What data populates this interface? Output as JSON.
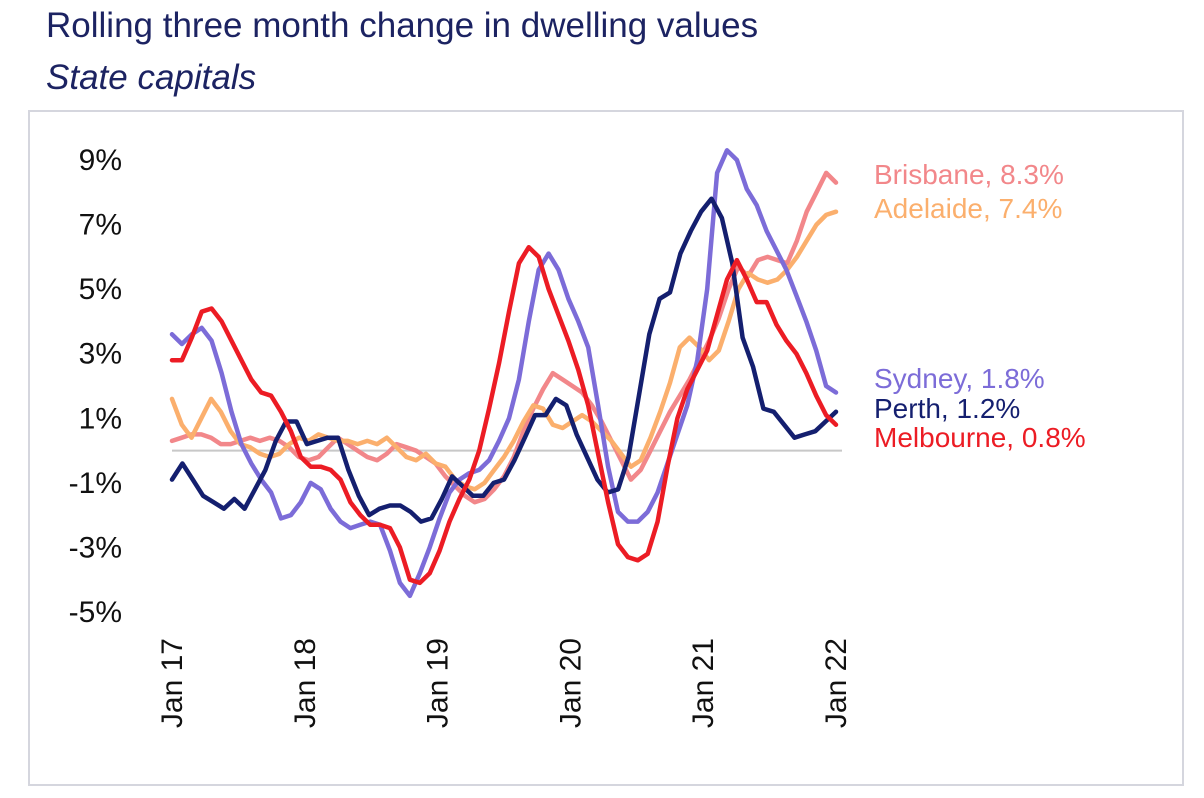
{
  "chart_data": {
    "type": "line",
    "title": "Rolling three month change in dwelling values",
    "subtitle": "State capitals",
    "x_tick_labels": [
      "Jan 17",
      "Jan 18",
      "Jan 19",
      "Jan 20",
      "Jan 21",
      "Jan 22"
    ],
    "y_tick_labels": [
      "9%",
      "7%",
      "5%",
      "3%",
      "1%",
      "-1%",
      "-3%",
      "-5%"
    ],
    "y_ticks": [
      9,
      7,
      5,
      3,
      1,
      -1,
      -3,
      -5
    ],
    "ylim": [
      -5.5,
      10.2
    ],
    "x_start": "2017-01",
    "x_end": "2022-01",
    "zero_line": true,
    "grid": false,
    "legend": "end-of-line labels",
    "series": [
      {
        "name": "Brisbane",
        "end_label": "Brisbane, 8.3%",
        "color": "#f2878a",
        "values": [
          0.3,
          0.4,
          0.5,
          0.5,
          0.4,
          0.2,
          0.2,
          0.3,
          0.4,
          0.3,
          0.4,
          0.3,
          0.1,
          -0.2,
          -0.3,
          -0.2,
          0.1,
          0.4,
          0.2,
          0.0,
          -0.2,
          -0.3,
          -0.1,
          0.2,
          0.1,
          0.0,
          -0.2,
          -0.4,
          -0.8,
          -1.1,
          -1.4,
          -1.6,
          -1.5,
          -1.2,
          -0.8,
          -0.2,
          0.6,
          1.3,
          1.9,
          2.4,
          2.2,
          2.0,
          1.8,
          1.4,
          0.9,
          0.3,
          -0.3,
          -0.9,
          -0.6,
          0.0,
          0.6,
          1.2,
          1.7,
          2.2,
          2.8,
          3.4,
          4.1,
          5.0,
          5.7,
          5.4,
          5.9,
          6.0,
          5.9,
          5.8,
          6.5,
          7.4,
          8.0,
          8.6,
          8.3
        ]
      },
      {
        "name": "Adelaide",
        "end_label": "Adelaide, 7.4%",
        "color": "#fbaf6d",
        "values": [
          1.6,
          0.8,
          0.4,
          1.0,
          1.6,
          1.2,
          0.6,
          0.2,
          0.1,
          -0.1,
          -0.2,
          -0.1,
          0.2,
          0.4,
          0.3,
          0.5,
          0.4,
          0.3,
          0.3,
          0.2,
          0.3,
          0.2,
          0.4,
          0.1,
          -0.2,
          -0.3,
          -0.1,
          -0.4,
          -0.5,
          -0.9,
          -1.1,
          -1.2,
          -1.0,
          -0.6,
          -0.2,
          0.3,
          0.9,
          1.4,
          1.3,
          0.8,
          0.7,
          0.9,
          1.1,
          0.9,
          0.6,
          0.3,
          -0.1,
          -0.5,
          -0.3,
          0.4,
          1.2,
          2.1,
          3.2,
          3.5,
          3.2,
          2.8,
          3.1,
          4.0,
          5.0,
          5.5,
          5.3,
          5.2,
          5.3,
          5.6,
          6.0,
          6.5,
          7.0,
          7.3,
          7.4
        ]
      },
      {
        "name": "Sydney",
        "end_label": "Sydney, 1.8%",
        "color": "#7c6cd8",
        "values": [
          3.6,
          3.3,
          3.6,
          3.8,
          3.4,
          2.4,
          1.2,
          0.2,
          -0.4,
          -0.9,
          -1.3,
          -2.1,
          -2.0,
          -1.6,
          -1.0,
          -1.2,
          -1.8,
          -2.2,
          -2.4,
          -2.3,
          -2.2,
          -2.3,
          -3.1,
          -4.1,
          -4.5,
          -3.8,
          -3.0,
          -2.1,
          -1.3,
          -0.9,
          -0.7,
          -0.6,
          -0.3,
          0.3,
          1.0,
          2.2,
          4.0,
          5.6,
          6.1,
          5.6,
          4.7,
          4.0,
          3.2,
          1.4,
          -0.5,
          -1.9,
          -2.2,
          -2.2,
          -1.9,
          -1.3,
          -0.4,
          0.5,
          1.4,
          2.8,
          5.0,
          8.6,
          9.3,
          9.0,
          8.1,
          7.6,
          6.8,
          6.2,
          5.6,
          4.8,
          4.0,
          3.1,
          2.0,
          1.8
        ]
      },
      {
        "name": "Perth",
        "end_label": "Perth, 1.2%",
        "color": "#141f6f",
        "values": [
          -0.9,
          -0.4,
          -0.9,
          -1.4,
          -1.6,
          -1.8,
          -1.5,
          -1.8,
          -1.2,
          -0.6,
          0.3,
          0.9,
          0.9,
          0.2,
          0.3,
          0.4,
          0.4,
          -0.6,
          -1.4,
          -2.0,
          -1.8,
          -1.7,
          -1.7,
          -1.9,
          -2.2,
          -2.1,
          -1.5,
          -0.8,
          -1.1,
          -1.4,
          -1.4,
          -1.0,
          -0.9,
          -0.3,
          0.4,
          1.1,
          1.1,
          1.6,
          1.4,
          0.5,
          -0.2,
          -0.9,
          -1.3,
          -1.2,
          -0.2,
          1.7,
          3.6,
          4.7,
          4.9,
          6.1,
          6.8,
          7.4,
          7.8,
          7.2,
          5.8,
          3.5,
          2.6,
          1.3,
          1.2,
          0.8,
          0.4,
          0.5,
          0.6,
          0.9,
          1.2
        ]
      },
      {
        "name": "Melbourne",
        "end_label": "Melbourne, 0.8%",
        "color": "#ec1c24",
        "values": [
          2.8,
          2.8,
          3.5,
          4.3,
          4.4,
          4.0,
          3.4,
          2.8,
          2.2,
          1.8,
          1.7,
          1.2,
          0.6,
          -0.2,
          -0.5,
          -0.5,
          -0.6,
          -0.9,
          -1.6,
          -2.0,
          -2.3,
          -2.3,
          -2.4,
          -3.0,
          -4.0,
          -4.1,
          -3.8,
          -3.1,
          -2.2,
          -1.5,
          -0.9,
          0.0,
          1.3,
          2.7,
          4.3,
          5.8,
          6.3,
          6.0,
          5.0,
          4.2,
          3.4,
          2.5,
          1.4,
          -0.1,
          -1.6,
          -2.9,
          -3.3,
          -3.4,
          -3.2,
          -2.2,
          -0.5,
          1.0,
          1.9,
          2.5,
          3.1,
          4.2,
          5.3,
          5.9,
          5.3,
          4.6,
          4.6,
          3.9,
          3.4,
          3.0,
          2.4,
          1.7,
          1.1,
          0.8
        ]
      }
    ]
  }
}
